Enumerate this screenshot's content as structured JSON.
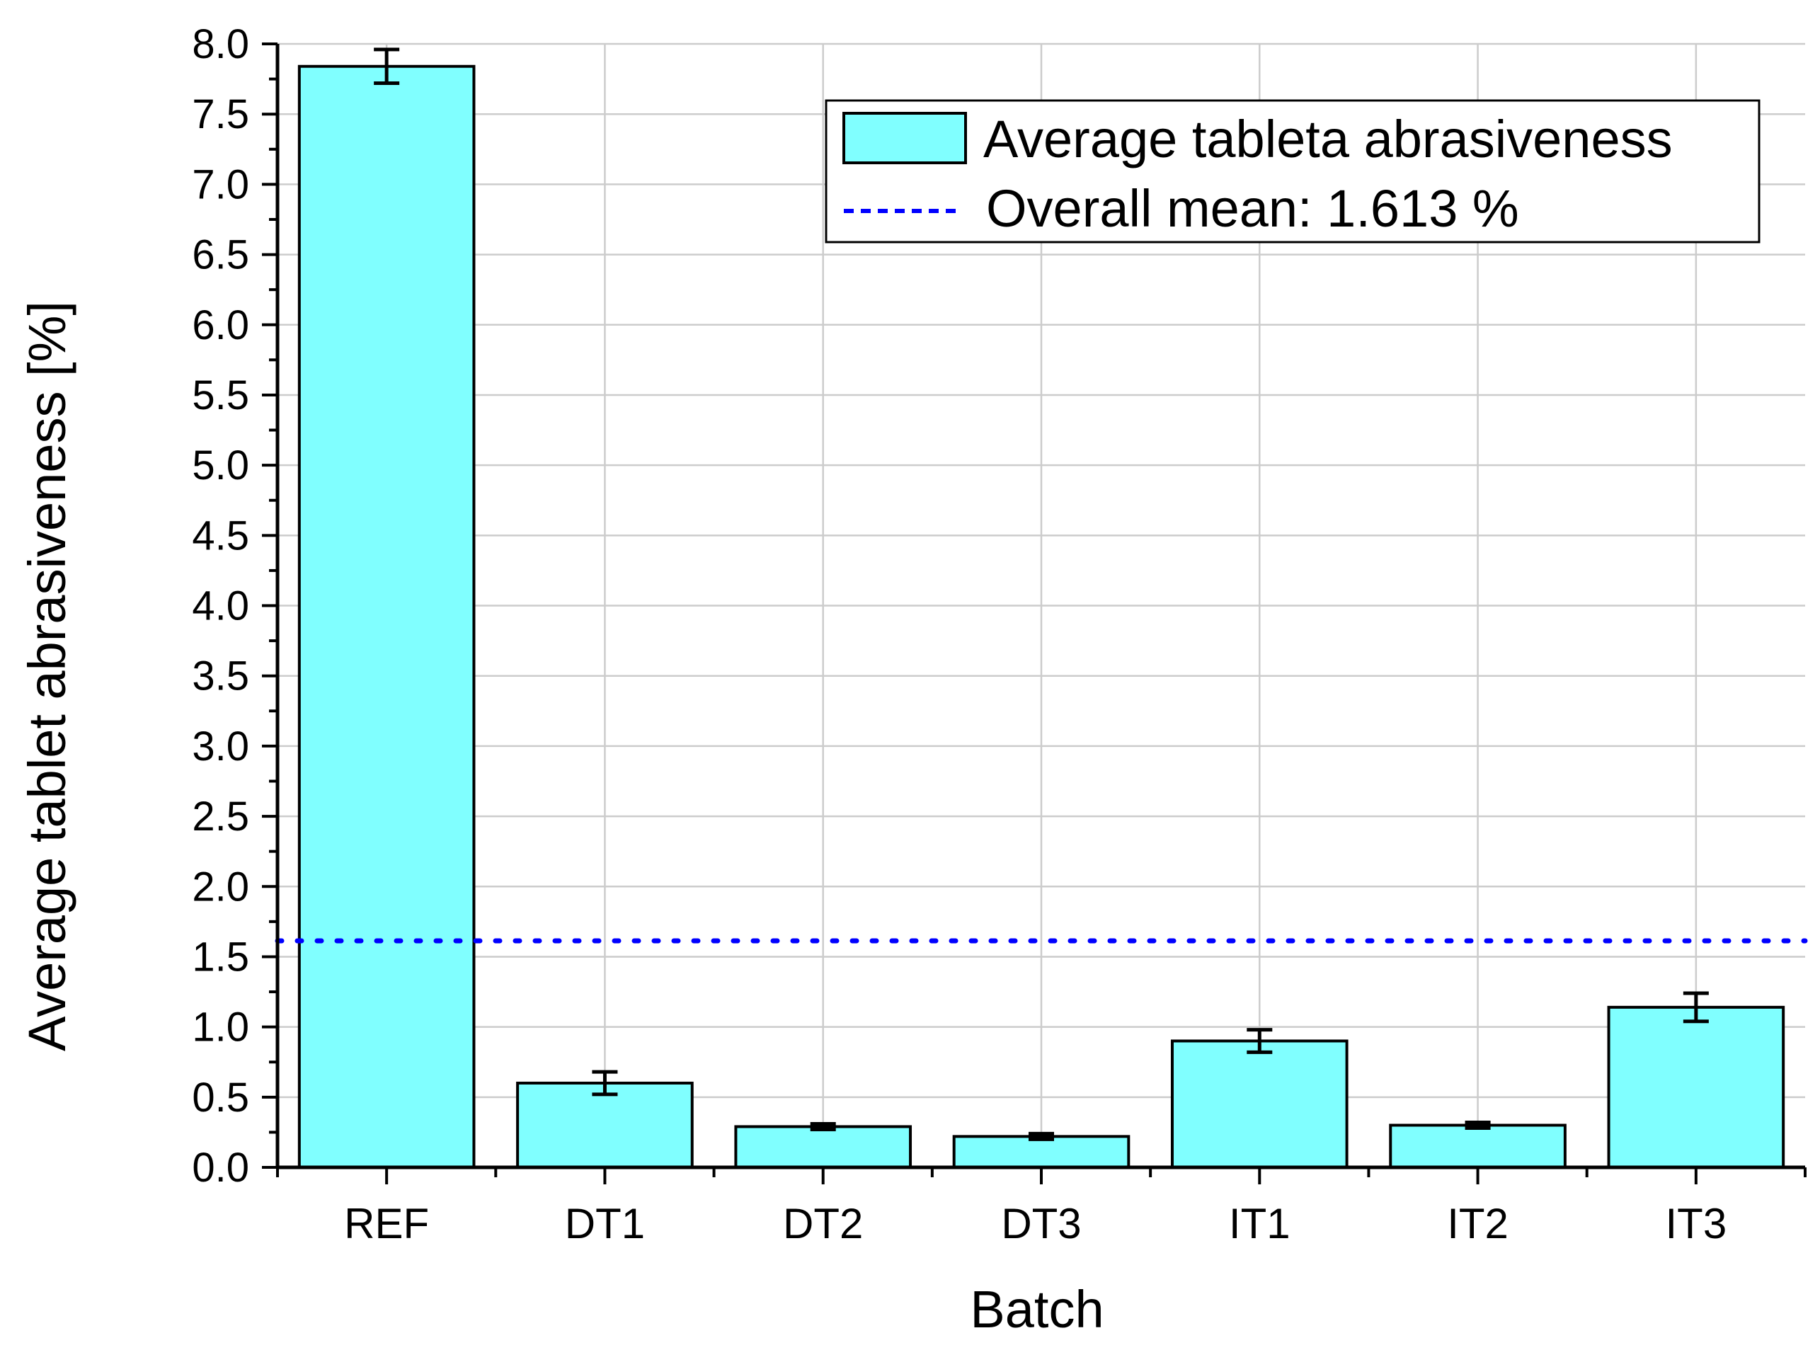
{
  "chart_data": {
    "type": "bar",
    "title": "",
    "xlabel": "Batch",
    "ylabel": "Average tablet abrasiveness [%]",
    "ylim": [
      0,
      8
    ],
    "ytick_step": 0.5,
    "ytick_labels": [
      "0.0",
      "0.5",
      "1.0",
      "1.5",
      "2.0",
      "2.5",
      "3.0",
      "3.5",
      "4.0",
      "4.5",
      "5.0",
      "5.5",
      "6.0",
      "6.5",
      "7.0",
      "7.5",
      "8.0"
    ],
    "grid": true,
    "legend_position": "top-right",
    "categories": [
      "REF",
      "DT1",
      "DT2",
      "DT3",
      "IT1",
      "IT2",
      "IT3"
    ],
    "series": [
      {
        "name": "Average tableta abrasiveness",
        "values": [
          7.84,
          0.6,
          0.29,
          0.22,
          0.9,
          0.3,
          1.14
        ],
        "errors": [
          0.12,
          0.08,
          0.02,
          0.02,
          0.08,
          0.02,
          0.1
        ],
        "color": "#80FFFF"
      }
    ],
    "reference_line": {
      "label": "Overall mean: 1.613 %",
      "value": 1.613,
      "color": "#0000FF",
      "style": "dotted"
    }
  }
}
